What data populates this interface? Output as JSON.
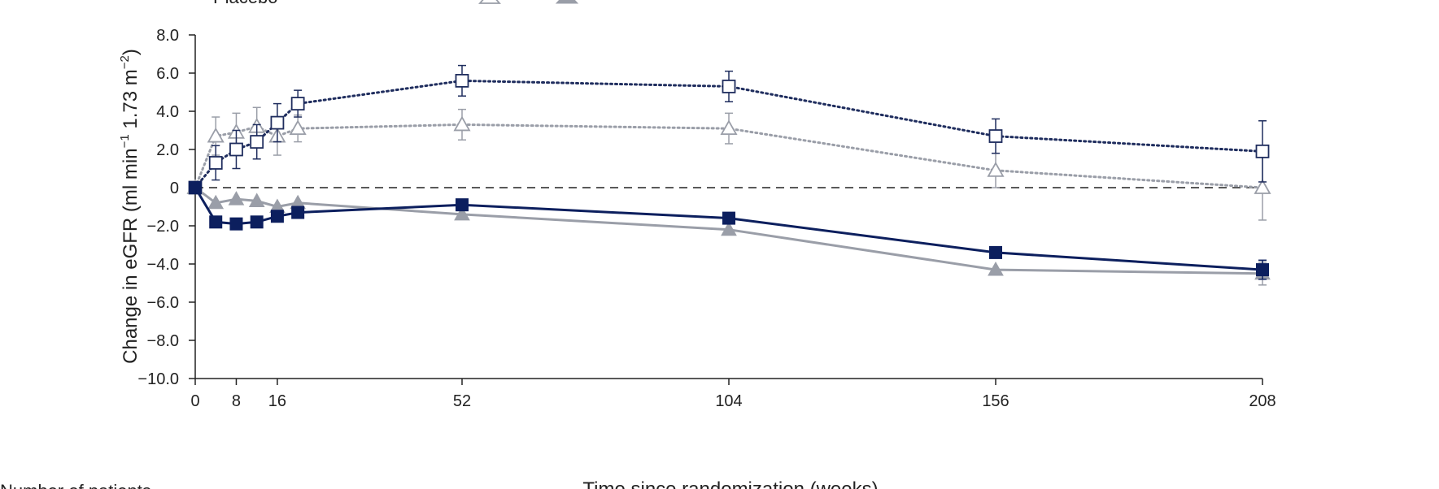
{
  "chart_data": {
    "type": "line",
    "title": "",
    "xlabel": "Time since randomization (weeks)",
    "ylabel_parts": {
      "a": "Change in eGFR (ml min",
      "b": "−1",
      "c": " 1.73 m",
      "d": "−2",
      "e": ")"
    },
    "xlim": [
      0,
      208
    ],
    "ylim": [
      -10.0,
      8.0
    ],
    "x_ticks": [
      {
        "value": 0,
        "label": "0"
      },
      {
        "value": 8,
        "label": "8"
      },
      {
        "value": 16,
        "label": "16"
      },
      {
        "value": 52,
        "label": "52"
      },
      {
        "value": 104,
        "label": "104"
      },
      {
        "value": 156,
        "label": "156"
      },
      {
        "value": 208,
        "label": "208"
      }
    ],
    "y_ticks": [
      {
        "value": 8,
        "label": "8.0"
      },
      {
        "value": 6,
        "label": "6.0"
      },
      {
        "value": 4,
        "label": "4.0"
      },
      {
        "value": 2,
        "label": "2.0"
      },
      {
        "value": 0,
        "label": "0"
      },
      {
        "value": -2,
        "label": "−2.0"
      },
      {
        "value": -4,
        "label": "−4.0"
      },
      {
        "value": -6,
        "label": "−6.0"
      },
      {
        "value": -8,
        "label": "−8.0"
      },
      {
        "value": -10,
        "label": "−10.0"
      }
    ],
    "reference_line": 0,
    "legend_partial_label": "Placebo",
    "series": [
      {
        "color": "#1f2d5e",
        "marker": "square-open",
        "line": "dotted",
        "points": [
          {
            "x": 0,
            "y": 0.0
          },
          {
            "x": 4,
            "y": 1.3,
            "err": 0.9
          },
          {
            "x": 8,
            "y": 2.0,
            "err": 1.0
          },
          {
            "x": 12,
            "y": 2.4,
            "err": 0.9
          },
          {
            "x": 16,
            "y": 3.4,
            "err": 1.0
          },
          {
            "x": 20,
            "y": 4.4,
            "err": 0.7
          },
          {
            "x": 52,
            "y": 5.6,
            "err": 0.8
          },
          {
            "x": 104,
            "y": 5.3,
            "err": 0.8
          },
          {
            "x": 156,
            "y": 2.7,
            "err": 0.9
          },
          {
            "x": 208,
            "y": 1.9,
            "err": 1.6
          }
        ]
      },
      {
        "color": "#9a9ea8",
        "marker": "triangle-open",
        "line": "dotted",
        "points": [
          {
            "x": 0,
            "y": 0.0
          },
          {
            "x": 4,
            "y": 2.7,
            "err": 1.0
          },
          {
            "x": 8,
            "y": 2.9,
            "err": 1.0
          },
          {
            "x": 12,
            "y": 3.2,
            "err": 1.0
          },
          {
            "x": 16,
            "y": 2.7,
            "err": 1.0
          },
          {
            "x": 20,
            "y": 3.1,
            "err": 0.7
          },
          {
            "x": 52,
            "y": 3.3,
            "err": 0.8
          },
          {
            "x": 104,
            "y": 3.1,
            "err": 0.8
          },
          {
            "x": 156,
            "y": 0.9,
            "err": 0.9
          },
          {
            "x": 208,
            "y": 0.0,
            "err": 1.7
          }
        ]
      },
      {
        "color": "#0c1f5e",
        "marker": "square-filled",
        "line": "solid",
        "points": [
          {
            "x": 0,
            "y": 0.0
          },
          {
            "x": 4,
            "y": -1.8
          },
          {
            "x": 8,
            "y": -1.9
          },
          {
            "x": 12,
            "y": -1.8
          },
          {
            "x": 16,
            "y": -1.5
          },
          {
            "x": 20,
            "y": -1.3
          },
          {
            "x": 52,
            "y": -0.9
          },
          {
            "x": 104,
            "y": -1.6
          },
          {
            "x": 156,
            "y": -3.4
          },
          {
            "x": 208,
            "y": -4.3,
            "err": 0.5
          }
        ]
      },
      {
        "color": "#9a9ea8",
        "marker": "triangle-filled",
        "line": "solid",
        "points": [
          {
            "x": 0,
            "y": 0.0
          },
          {
            "x": 4,
            "y": -0.8
          },
          {
            "x": 8,
            "y": -0.6
          },
          {
            "x": 12,
            "y": -0.7
          },
          {
            "x": 16,
            "y": -1.0
          },
          {
            "x": 20,
            "y": -0.8
          },
          {
            "x": 52,
            "y": -1.4
          },
          {
            "x": 104,
            "y": -2.2
          },
          {
            "x": 156,
            "y": -4.3
          },
          {
            "x": 208,
            "y": -4.5,
            "err": 0.6
          }
        ]
      }
    ]
  },
  "footer": {
    "left_partial": "Number of patients",
    "bottom_xlabel": "Time since randomization (weeks)"
  }
}
